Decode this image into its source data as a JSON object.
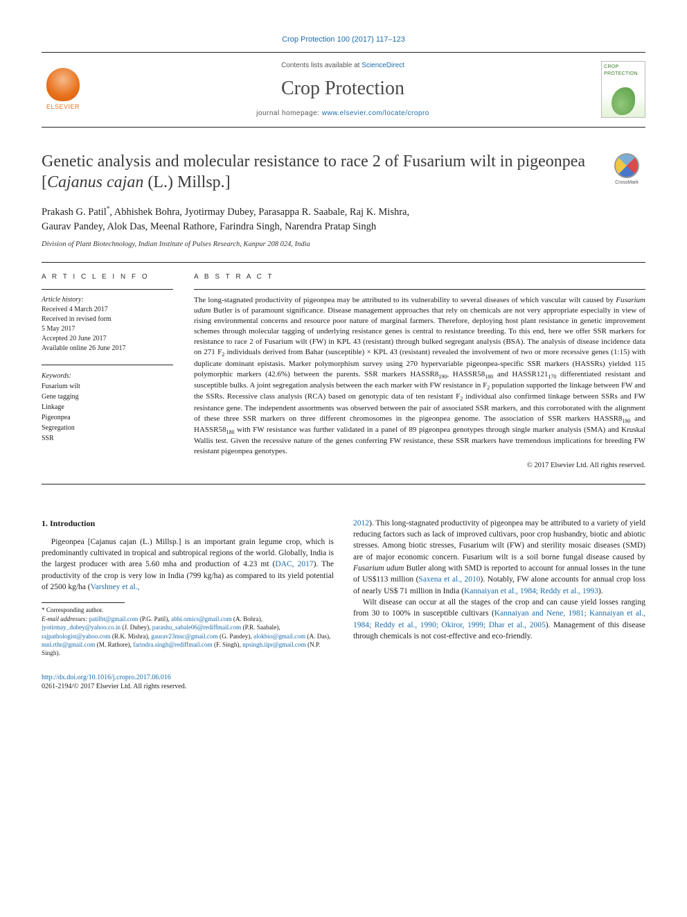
{
  "top_citation": "Crop Protection 100 (2017) 117–123",
  "header": {
    "contents_prefix": "Contents lists available at ",
    "contents_link": "ScienceDirect",
    "journal_name": "Crop Protection",
    "homepage_prefix": "journal homepage: ",
    "homepage_url": "www.elsevier.com/locate/cropro",
    "publisher": "ELSEVIER",
    "cover_title": "CROP PROTECTION"
  },
  "crossmark_label": "CrossMark",
  "title": "Genetic analysis and molecular resistance to race 2 of Fusarium wilt in pigeonpea [Cajanus cajan (L.) Millsp.]",
  "authors_line1": "Prakash G. Patil*, Abhishek Bohra, Jyotirmay Dubey, Parasappa R. Saabale, Raj K. Mishra,",
  "authors_line2": "Gaurav Pandey, Alok Das, Meenal Rathore, Farindra Singh, Narendra Pratap Singh",
  "affiliation": "Division of Plant Biotechnology, Indian Institute of Pulses Research, Kanpur 208 024, India",
  "article_info_label": "A R T I C L E   I N F O",
  "abstract_label": "A B S T R A C T",
  "history": {
    "heading": "Article history:",
    "received": "Received 4 March 2017",
    "revised1": "Received in revised form",
    "revised2": "5 May 2017",
    "accepted": "Accepted 20 June 2017",
    "online": "Available online 26 June 2017"
  },
  "keywords": {
    "heading": "Keywords:",
    "items": [
      "Fusarium wilt",
      "Gene tagging",
      "Linkage",
      "Pigeonpea",
      "Segregation",
      "SSR"
    ]
  },
  "abstract": "The long-stagnated productivity of pigeonpea may be attributed to its vulnerability to several diseases of which vascular wilt caused by Fusarium udum Butler is of paramount significance. Disease management approaches that rely on chemicals are not very appropriate especially in view of rising environmental concerns and resource poor nature of marginal farmers. Therefore, deploying host plant resistance in genetic improvement schemes through molecular tagging of underlying resistance genes is central to resistance breeding. To this end, here we offer SSR markers for resistance to race 2 of Fusarium wilt (FW) in KPL 43 (resistant) through bulked segregant analysis (BSA). The analysis of disease incidence data on 271 F2 individuals derived from Bahar (susceptible) × KPL 43 (resistant) revealed the involvement of two or more recessive genes (1:15) with duplicate dominant epistasis. Marker polymorphism survey using 270 hypervariable pigeonpea-specific SSR markers (HASSRs) yielded 115 polymorphic markers (42.6%) between the parents. SSR markers HASSR8190, HASSR58180 and HASSR121170 differentiated resistant and susceptible bulks. A joint segregation analysis between the each marker with FW resistance in F2 population supported the linkage between FW and the SSRs. Recessive class analysis (RCA) based on genotypic data of ten resistant F2 individual also confirmed linkage between SSRs and FW resistance gene. The independent assortments was observed between the pair of associated SSR markers, and this corroborated with the alignment of these three SSR markers on three different chromosomes in the pigeonpea genome. The association of SSR markers HASSR8190 and HASSR58180 with FW resistance was further validated in a panel of 89 pigeonpea genotypes through single marker analysis (SMA) and Kruskal Wallis test. Given the recessive nature of the genes conferring FW resistance, these SSR markers have tremendous implications for breeding FW resistant pigeonpea genotypes.",
  "copyright": "© 2017 Elsevier Ltd. All rights reserved.",
  "intro_heading": "1. Introduction",
  "intro_p1_a": "Pigeonpea [Cajanus cajan (L.) Millsp.] is an important grain legume crop, which is predominantly cultivated in tropical and subtropical regions of the world. Globally, India is the largest producer with area 5.60 mha and production of 4.23 mt (",
  "intro_p1_ref1": "DAC, 2017",
  "intro_p1_b": "). The productivity of the crop is very low in India (799 kg/ha) as compared to its yield potential of 2500 kg/ha (",
  "intro_p1_ref2": "Varshney et al.,",
  "intro_p1_c": "",
  "col2_ref0": "2012",
  "col2_a": "). This long-stagnated productivity of pigeonpea may be attributed to a variety of yield reducing factors such as lack of improved cultivars, poor crop husbandry, biotic and abiotic stresses. Among biotic stresses, Fusarium wilt (FW) and sterility mosaic diseases (SMD) are of major economic concern. Fusarium wilt is a soil borne fungal disease caused by Fusarium udum Butler along with SMD is reported to account for annual losses in the tune of US$113 million (",
  "col2_ref1": "Saxena et al., 2010",
  "col2_b": "). Notably, FW alone accounts for annual crop loss of nearly US$ 71 million in India (",
  "col2_ref2": "Kannaiyan et al., 1984; Reddy et al., 1993",
  "col2_c": ").",
  "col2_p2_a": "Wilt disease can occur at all the stages of the crop and can cause yield losses ranging from 30 to 100% in susceptible cultivars (",
  "col2_p2_ref": "Kannaiyan and Nene, 1981; Kannaiyan et al., 1984; Reddy et al., 1990; Okiror, 1999; Dhar et al., 2005",
  "col2_p2_b": "). Management of this disease through chemicals is not cost-effective and eco-friendly.",
  "footnotes": {
    "corresponding": "* Corresponding author.",
    "email_label": "E-mail addresses:",
    "emails": [
      {
        "addr": "patilbt@gmail.com",
        "who": "(P.G. Patil),"
      },
      {
        "addr": "abhi.omics@gmail.com",
        "who": "(A. Bohra),"
      },
      {
        "addr": "jyotirmay_dubey@yahoo.co.in",
        "who": "(J. Dubey),"
      },
      {
        "addr": "parashu_sabale06@rediffmail.com",
        "who": "(P.R. Saabale),"
      },
      {
        "addr": "rajpathologist@yahoo.com",
        "who": "(R.K. Mishra),"
      },
      {
        "addr": "gaurav23msc@gmail.com",
        "who": "(G. Pandey),"
      },
      {
        "addr": "alokbio@gmail.com",
        "who": "(A. Das),"
      },
      {
        "addr": "mnl.rthr@gmail.com",
        "who": "(M. Rathore),"
      },
      {
        "addr": "farindra.singh@rediffmail.com",
        "who": "(F. Singh),"
      },
      {
        "addr": "npsingh.iipr@gmail.com",
        "who": "(N.P. Singh)."
      }
    ]
  },
  "doi": {
    "url": "http://dx.doi.org/10.1016/j.cropro.2017.06.016",
    "issn": "0261-2194/© 2017 Elsevier Ltd. All rights reserved."
  },
  "colors": {
    "link": "#1a6ba8",
    "elsevier": "#e9711c",
    "text": "#1a1a1a",
    "rule": "#222222",
    "background": "#ffffff"
  }
}
